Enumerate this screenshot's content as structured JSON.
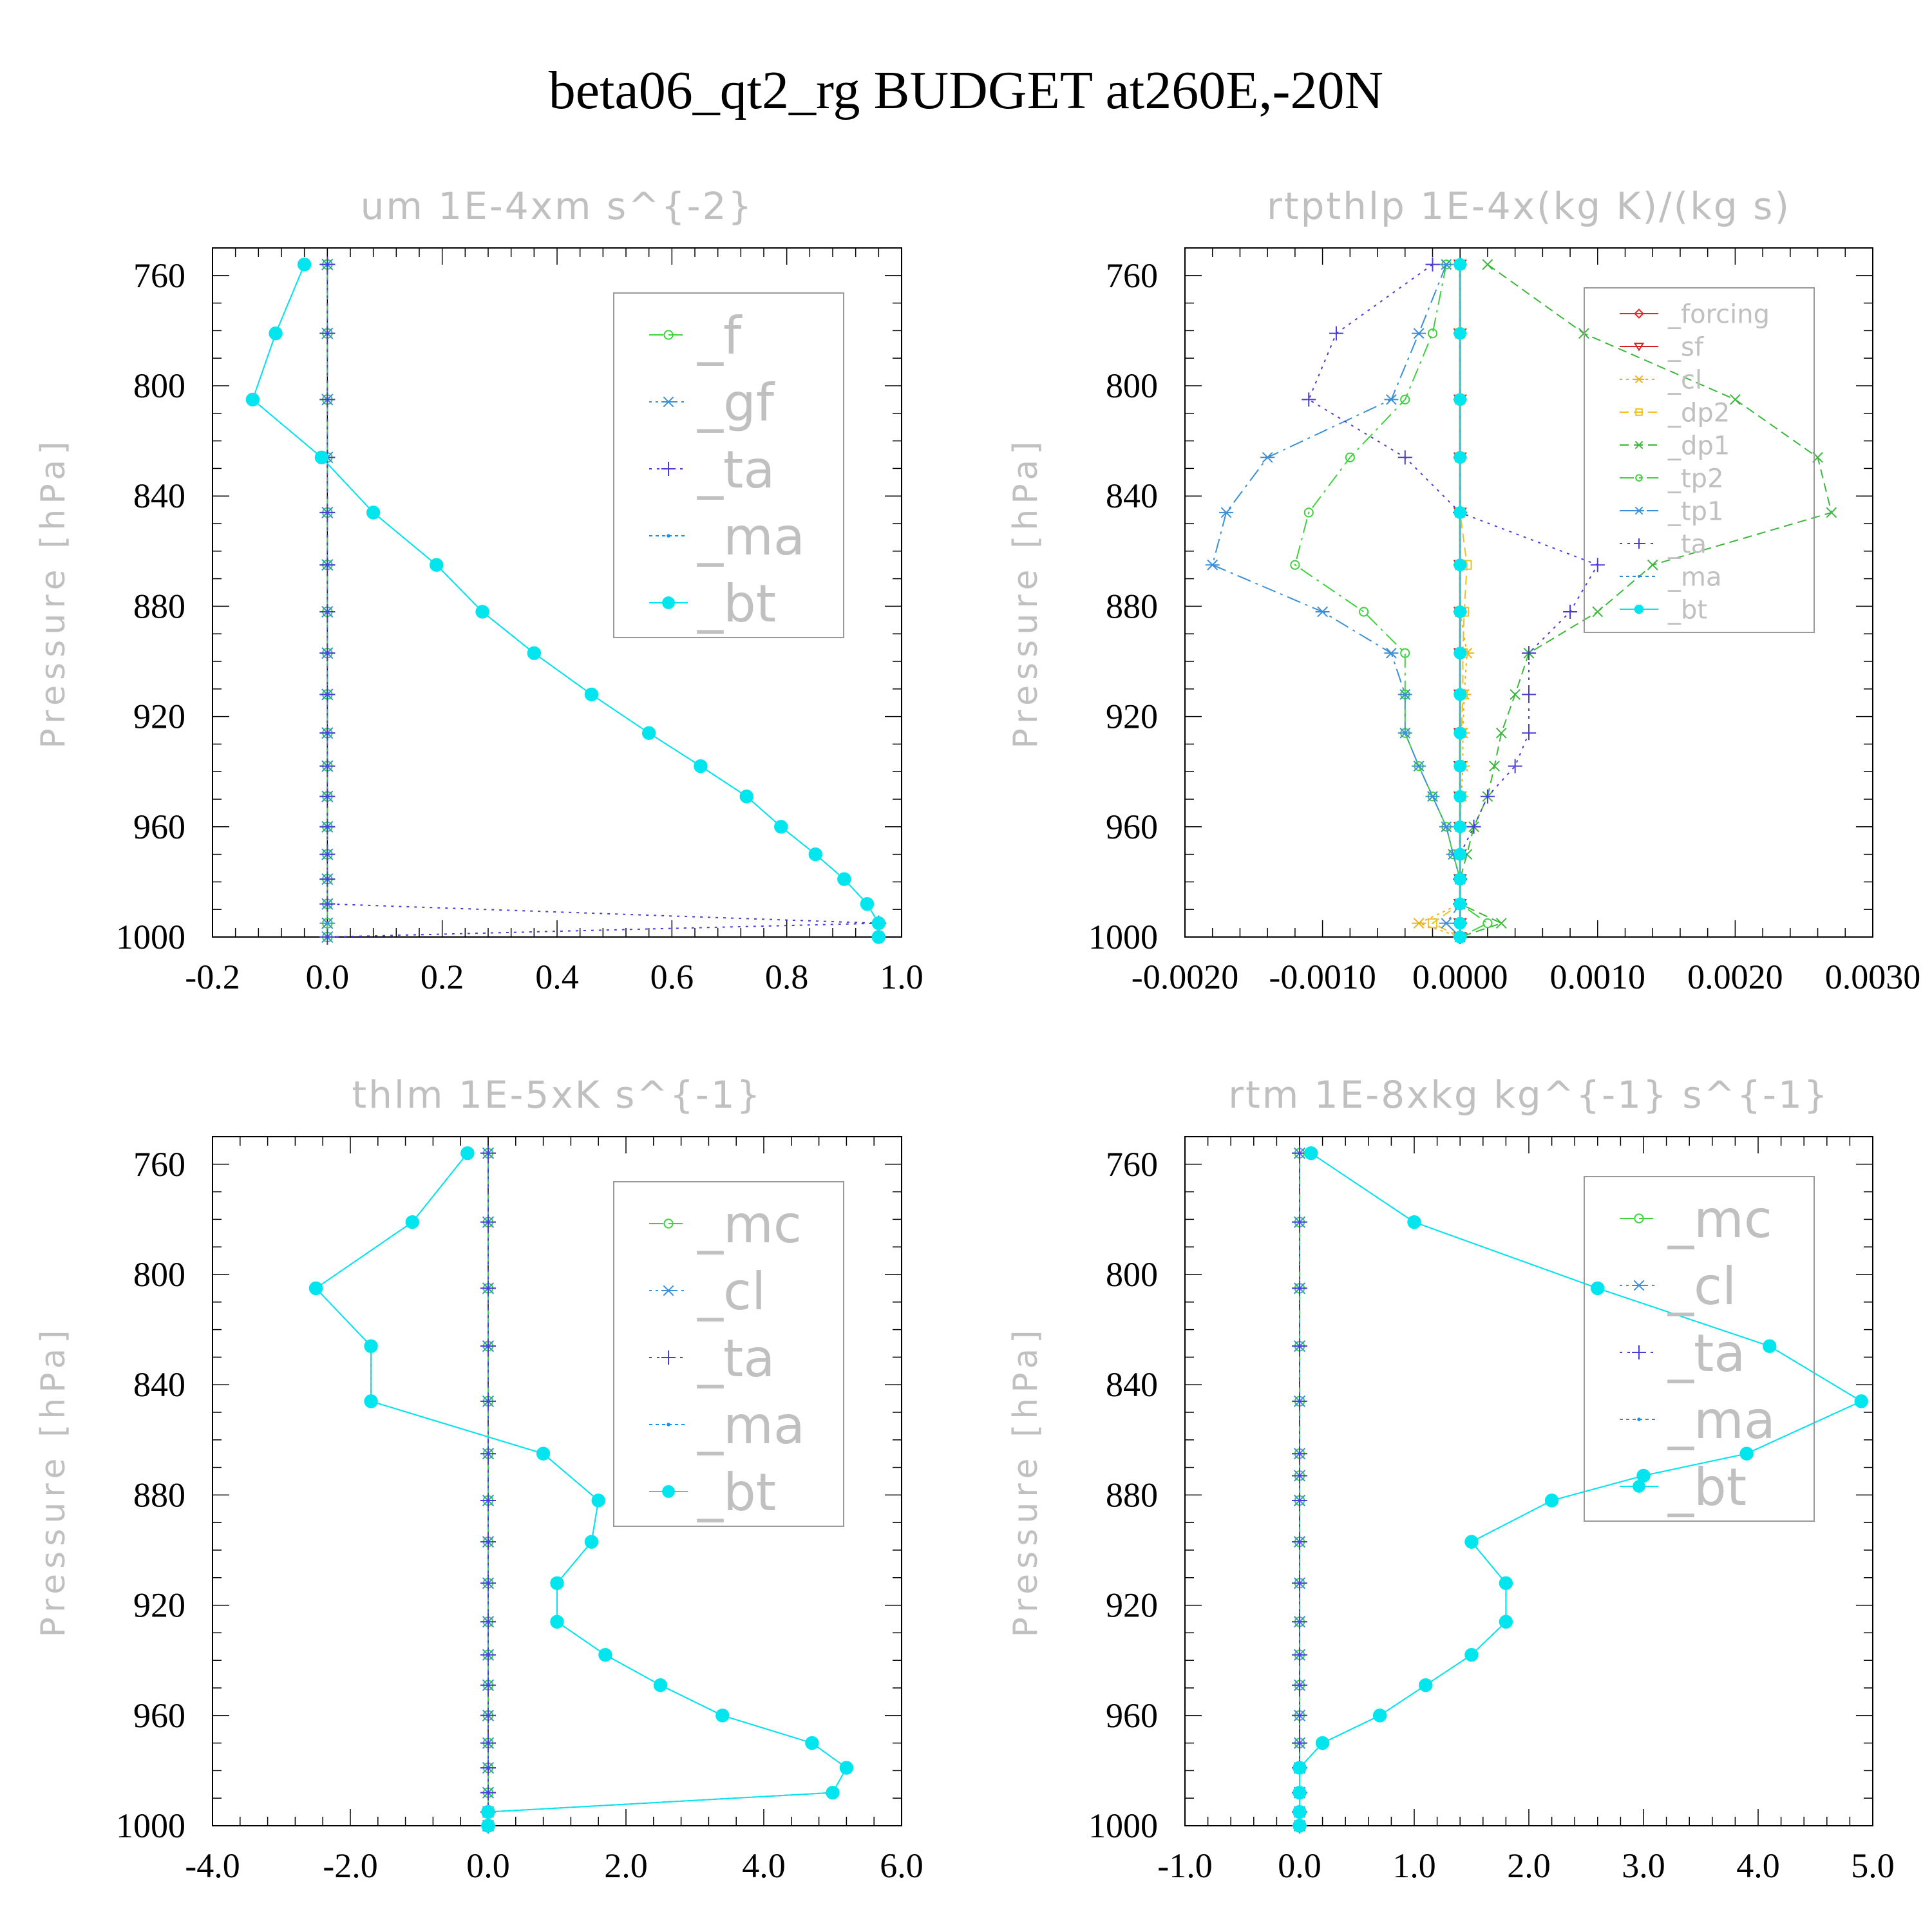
{
  "title": "beta06_qt2_rg  BUDGET at260E,-20N",
  "colors": {
    "_f": "#3bd23b",
    "_gf": "#3a8fd6",
    "_ta": "#4a3ad8",
    "_ma": "#1a90e8",
    "_bt": "#00e5ee",
    "_forcing": "#ee2222",
    "_sf": "#d02020",
    "_cl": "#f0b020",
    "_dp2": "#f0c020",
    "_dp1": "#3bb83b",
    "_tp2": "#3bd23b",
    "_tp1": "#3a8fd6",
    "_mc": "#3bd23b",
    "_cl_blue": "#3a8fd6"
  },
  "chart_data": [
    {
      "type": "line",
      "title": "um  1E-4xm s^{-2}",
      "ylabel": "Pressure [hPa]",
      "xlim": [
        -0.2,
        1.0
      ],
      "ylim": [
        1000,
        750
      ],
      "xticks": [
        "-0.2",
        "0.0",
        "0.2",
        "0.4",
        "0.6",
        "0.8",
        "1.0"
      ],
      "xtick_values": [
        -0.2,
        0.0,
        0.2,
        0.4,
        0.6,
        0.8,
        1.0
      ],
      "yticks": [
        "760",
        "800",
        "840",
        "880",
        "920",
        "960",
        "1000"
      ],
      "ytick_values": [
        760,
        800,
        840,
        880,
        920,
        960,
        1000
      ],
      "legend": [
        "_f",
        "_gf",
        "_ta",
        "_ma",
        "_bt"
      ],
      "legend_placement": "upper-right",
      "pressure": [
        756,
        781,
        805,
        826,
        846,
        865,
        882,
        897,
        912,
        926,
        938,
        949,
        960,
        970,
        979,
        988,
        995,
        1000
      ],
      "series": [
        {
          "name": "_f",
          "values": [
            0,
            0,
            0,
            0,
            0,
            0,
            0,
            0,
            0,
            0,
            0,
            0,
            0,
            0,
            0,
            0,
            0,
            0
          ]
        },
        {
          "name": "_gf",
          "values": [
            0,
            0,
            0,
            0,
            0,
            0,
            0,
            0,
            0,
            0,
            0,
            0,
            0,
            0,
            0,
            0,
            0,
            0
          ]
        },
        {
          "name": "_ta",
          "values": [
            0,
            0,
            0,
            0,
            0,
            0,
            0,
            0,
            0,
            0,
            0,
            0,
            0,
            0,
            0,
            0,
            0.96,
            0
          ]
        },
        {
          "name": "_ma",
          "values": [
            -0.04,
            -0.09,
            -0.13,
            -0.01,
            0.08,
            0.19,
            0.27,
            0.36,
            0.46,
            0.56,
            0.65,
            0.73,
            0.79,
            0.85,
            0.9,
            0.94,
            0.96,
            0.96
          ]
        },
        {
          "name": "_bt",
          "values": [
            -0.04,
            -0.09,
            -0.13,
            -0.01,
            0.08,
            0.19,
            0.27,
            0.36,
            0.46,
            0.56,
            0.65,
            0.73,
            0.79,
            0.85,
            0.9,
            0.94,
            0.96,
            0.96
          ]
        }
      ]
    },
    {
      "type": "line",
      "title": "rtpthlp  1E-4x(kg K)/(kg s)",
      "ylabel": "Pressure [hPa]",
      "xlim": [
        -0.002,
        0.003
      ],
      "ylim": [
        1000,
        750
      ],
      "xticks": [
        "-0.0020",
        "-0.0010",
        "0.0000",
        "0.0010",
        "0.0020",
        "0.0030"
      ],
      "xtick_values": [
        -0.002,
        -0.001,
        0.0,
        0.001,
        0.002,
        0.003
      ],
      "yticks": [
        "760",
        "800",
        "840",
        "880",
        "920",
        "960",
        "1000"
      ],
      "ytick_values": [
        760,
        800,
        840,
        880,
        920,
        960,
        1000
      ],
      "legend": [
        "_forcing",
        "_sf",
        "_cl",
        "_dp2",
        "_dp1",
        "_tp2",
        "_tp1",
        "_ta",
        "_ma",
        "_bt"
      ],
      "legend_placement": "upper-right",
      "pressure": [
        756,
        781,
        805,
        826,
        846,
        865,
        882,
        897,
        912,
        926,
        938,
        949,
        960,
        970,
        979,
        988,
        995,
        1000
      ],
      "series": [
        {
          "name": "_forcing",
          "values": [
            0,
            0,
            0,
            0,
            0,
            0,
            0,
            0,
            0,
            0,
            0,
            0,
            0,
            0,
            0,
            0,
            0,
            0
          ]
        },
        {
          "name": "_sf",
          "values": [
            0,
            0,
            0,
            0,
            0,
            0,
            0,
            0,
            0,
            0,
            0,
            0,
            0,
            0,
            0,
            0,
            0,
            0
          ]
        },
        {
          "name": "_cl",
          "values": [
            0,
            0,
            0,
            0,
            0,
            0,
            0,
            5e-05,
            3e-05,
            2e-05,
            2e-05,
            1e-05,
            0,
            0,
            0,
            0,
            -0.0003,
            0
          ]
        },
        {
          "name": "_dp2",
          "values": [
            0,
            0,
            0,
            0,
            0,
            5e-05,
            3e-05,
            2e-05,
            2e-05,
            1e-05,
            0,
            0,
            0,
            0,
            0,
            0,
            -0.0002,
            0
          ]
        },
        {
          "name": "_dp1",
          "values": [
            0.0002,
            0.0009,
            0.002,
            0.0026,
            0.0027,
            0.0014,
            0.001,
            0.0005,
            0.0004,
            0.0003,
            0.00025,
            0.0002,
            0.0001,
            5e-05,
            0,
            0,
            0.0003,
            0
          ]
        },
        {
          "name": "_tp2",
          "values": [
            -0.0001,
            -0.0002,
            -0.0004,
            -0.0008,
            -0.0011,
            -0.0012,
            -0.0007,
            -0.0004,
            -0.0004,
            -0.0004,
            -0.0003,
            -0.0002,
            -0.0001,
            -5e-05,
            0,
            0,
            0.0002,
            0
          ]
        },
        {
          "name": "_tp1",
          "values": [
            -0.0001,
            -0.0003,
            -0.0005,
            -0.0014,
            -0.0017,
            -0.0018,
            -0.001,
            -0.0005,
            -0.0004,
            -0.0004,
            -0.0003,
            -0.0002,
            -0.0001,
            -5e-05,
            0,
            0,
            -0.0001,
            0
          ]
        },
        {
          "name": "_ta",
          "values": [
            -0.0002,
            -0.0009,
            -0.0011,
            -0.0004,
            0.0,
            0.001,
            0.0008,
            0.0005,
            0.0005,
            0.0005,
            0.0004,
            0.0002,
            0.0001,
            0,
            0,
            0,
            0,
            0
          ]
        },
        {
          "name": "_ma",
          "values": [
            0,
            0,
            0,
            0,
            0,
            0,
            0,
            0,
            0,
            0,
            0,
            0,
            0,
            0,
            0,
            0,
            0,
            0
          ]
        },
        {
          "name": "_bt",
          "values": [
            0,
            0,
            0,
            0,
            0,
            0,
            0,
            0,
            0,
            0,
            0,
            0,
            0,
            0,
            0,
            0,
            0,
            0
          ]
        }
      ]
    },
    {
      "type": "line",
      "title": "thlm  1E-5xK s^{-1}",
      "ylabel": "Pressure [hPa]",
      "xlim": [
        -4.0,
        6.0
      ],
      "ylim": [
        1000,
        750
      ],
      "xticks": [
        "-4.0",
        "-2.0",
        "0.0",
        "2.0",
        "4.0",
        "6.0"
      ],
      "xtick_values": [
        -4.0,
        -2.0,
        0.0,
        2.0,
        4.0,
        6.0
      ],
      "yticks": [
        "760",
        "800",
        "840",
        "880",
        "920",
        "960",
        "1000"
      ],
      "ytick_values": [
        760,
        800,
        840,
        880,
        920,
        960,
        1000
      ],
      "legend": [
        "_mc",
        "_cl",
        "_ta",
        "_ma",
        "_bt"
      ],
      "legend_placement": "upper-right",
      "pressure": [
        756,
        781,
        805,
        826,
        846,
        865,
        882,
        897,
        912,
        926,
        938,
        949,
        960,
        970,
        979,
        988,
        995,
        1000
      ],
      "series": [
        {
          "name": "_mc",
          "values": [
            0,
            0,
            0,
            0,
            0,
            0,
            0,
            0,
            0,
            0,
            0,
            0,
            0,
            0,
            0,
            0,
            0,
            0
          ]
        },
        {
          "name": "_cl",
          "values": [
            0,
            0,
            0,
            0,
            0,
            0,
            0,
            0,
            0,
            0,
            0,
            0,
            0,
            0,
            0,
            0,
            0,
            0
          ]
        },
        {
          "name": "_ta",
          "values": [
            0,
            0,
            0,
            0,
            0,
            0,
            0,
            0,
            0,
            0,
            0,
            0,
            0,
            0,
            0,
            0,
            0,
            0
          ]
        },
        {
          "name": "_ma",
          "values": [
            -0.3,
            -1.1,
            -2.5,
            -1.7,
            -1.7,
            0.8,
            1.6,
            1.5,
            1.0,
            1.0,
            1.7,
            2.5,
            3.4,
            4.7,
            5.2,
            5.0,
            0.0,
            0.0
          ]
        },
        {
          "name": "_bt",
          "values": [
            -0.3,
            -1.1,
            -2.5,
            -1.7,
            -1.7,
            0.8,
            1.6,
            1.5,
            1.0,
            1.0,
            1.7,
            2.5,
            3.4,
            4.7,
            5.2,
            5.0,
            0.0,
            0.0
          ]
        }
      ]
    },
    {
      "type": "line",
      "title": "rtm  1E-8xkg kg^{-1} s^{-1}",
      "ylabel": "Pressure [hPa]",
      "xlim": [
        -1.0,
        5.0
      ],
      "ylim": [
        1000,
        750
      ],
      "xticks": [
        "-1.0",
        "0.0",
        "1.0",
        "2.0",
        "3.0",
        "4.0",
        "5.0"
      ],
      "xtick_values": [
        -1.0,
        0.0,
        1.0,
        2.0,
        3.0,
        4.0,
        5.0
      ],
      "yticks": [
        "760",
        "800",
        "840",
        "880",
        "920",
        "960",
        "1000"
      ],
      "ytick_values": [
        760,
        800,
        840,
        880,
        920,
        960,
        1000
      ],
      "legend": [
        "_mc",
        "_cl",
        "_ta",
        "_ma",
        "_bt"
      ],
      "legend_placement": "upper-right",
      "pressure": [
        756,
        781,
        805,
        826,
        846,
        865,
        873,
        882,
        897,
        912,
        926,
        938,
        949,
        960,
        970,
        979,
        988,
        995,
        1000
      ],
      "series": [
        {
          "name": "_mc",
          "values": [
            0,
            0,
            0,
            0,
            0,
            0,
            0,
            0,
            0,
            0,
            0,
            0,
            0,
            0,
            0,
            0,
            0,
            0,
            0
          ]
        },
        {
          "name": "_cl",
          "values": [
            0,
            0,
            0,
            0,
            0,
            0,
            0,
            0,
            0,
            0,
            0,
            0,
            0,
            0,
            0,
            0,
            0,
            0,
            0
          ]
        },
        {
          "name": "_ta",
          "values": [
            0,
            0,
            0,
            0,
            0,
            0,
            0,
            0,
            0,
            0,
            0,
            0,
            0,
            0,
            0,
            0,
            0,
            0,
            0
          ]
        },
        {
          "name": "_ma",
          "values": [
            0.1,
            1.0,
            2.6,
            4.1,
            4.9,
            3.9,
            3.0,
            2.2,
            1.5,
            1.8,
            1.8,
            1.5,
            1.1,
            0.7,
            0.2,
            0.0,
            0.0,
            0.0,
            0.0
          ]
        },
        {
          "name": "_bt",
          "values": [
            0.1,
            1.0,
            2.6,
            4.1,
            4.9,
            3.9,
            3.0,
            2.2,
            1.5,
            1.8,
            1.8,
            1.5,
            1.1,
            0.7,
            0.2,
            0.0,
            0.0,
            0.0,
            0.0
          ]
        }
      ]
    }
  ]
}
